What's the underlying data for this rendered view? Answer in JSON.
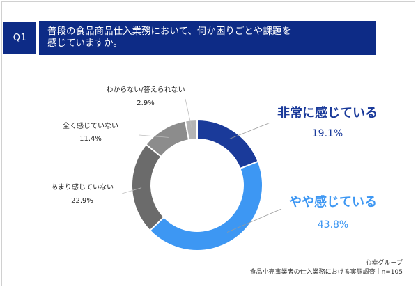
{
  "question": {
    "badge": "Q1",
    "text_line1": "普段の食品商品仕入業務において、何か困りごとや課題を",
    "text_line2": "感じていますか。"
  },
  "colors": {
    "header_bg": "#0d2b86",
    "header_text": "#ffffff"
  },
  "chart_data": {
    "type": "pie",
    "style": "donut",
    "title": "",
    "categories": [
      "非常に感じている",
      "やや感じている",
      "あまり感じていない",
      "全く感じていない",
      "わからない/答えられない"
    ],
    "values": [
      19.1,
      43.8,
      22.9,
      11.4,
      2.9
    ],
    "value_labels": [
      "19.1%",
      "43.8%",
      "22.9%",
      "11.4%",
      "2.9%"
    ],
    "colors": [
      "#1a3a9a",
      "#3d97f3",
      "#6b6b6b",
      "#8c8c8c",
      "#b4b4b4"
    ],
    "label_colors": [
      "#1a3a9a",
      "#3d97f3",
      "#222222",
      "#222222",
      "#222222"
    ]
  },
  "footer": {
    "company": "心幸グループ",
    "source": "食品小売事業者の仕入業務における実態調査｜n=105"
  }
}
